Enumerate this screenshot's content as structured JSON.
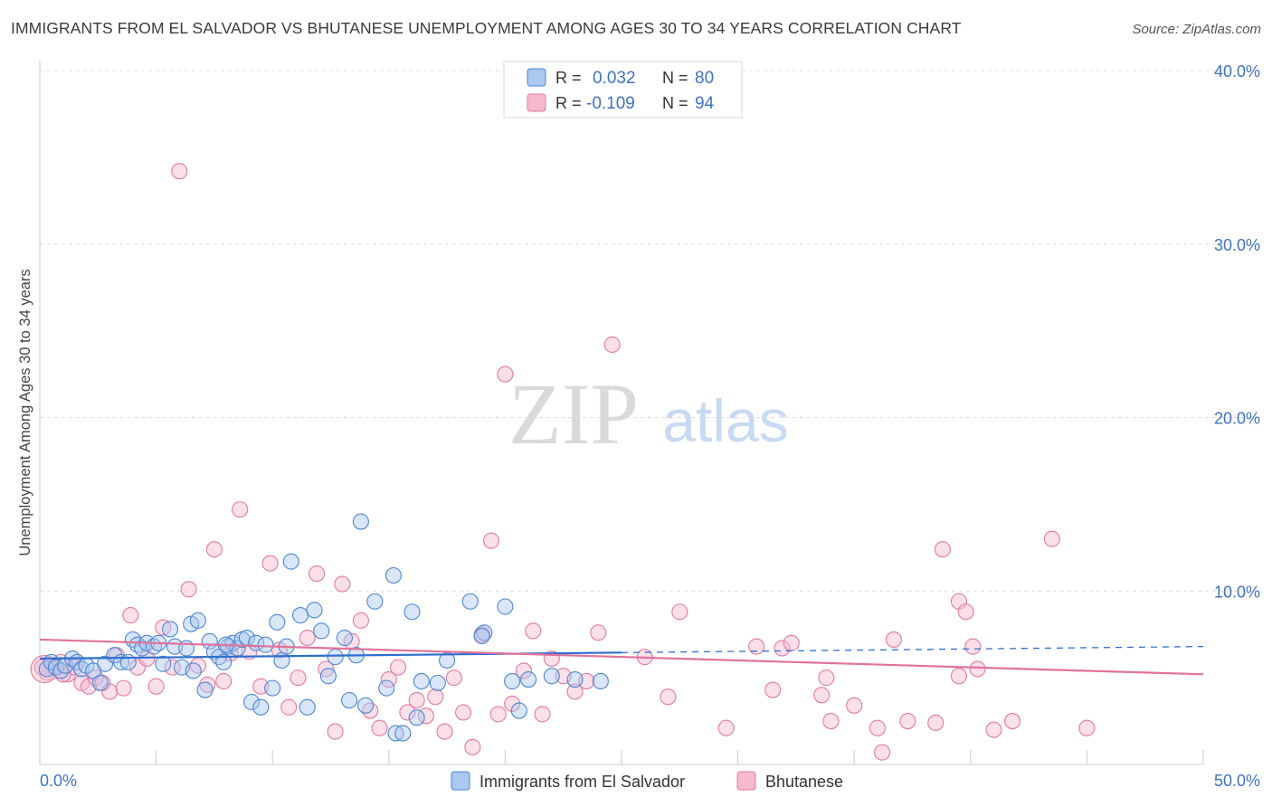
{
  "title": "IMMIGRANTS FROM EL SALVADOR VS BHUTANESE UNEMPLOYMENT AMONG AGES 30 TO 34 YEARS CORRELATION CHART",
  "source": "Source: ZipAtlas.com",
  "watermark": {
    "zip": "ZIP",
    "atlas": "atlas"
  },
  "chart_data": {
    "type": "scatter",
    "title": "IMMIGRANTS FROM EL SALVADOR VS BHUTANESE UNEMPLOYMENT AMONG AGES 30 TO 34 YEARS CORRELATION CHART",
    "xlabel": "",
    "ylabel": "Unemployment Among Ages 30 to 34 years",
    "xlim": [
      0,
      50
    ],
    "ylim": [
      0,
      40
    ],
    "x_tick_labels": [
      "0.0%",
      "50.0%"
    ],
    "y_ticks": [
      10,
      20,
      30,
      40
    ],
    "y_tick_labels": [
      "10.0%",
      "20.0%",
      "30.0%",
      "40.0%"
    ],
    "grid": true,
    "legend_position": "top-center",
    "colors": {
      "series1_fill": "#aac8f0",
      "series1_stroke": "#4d86d4",
      "series1_line": "#2e6fd0",
      "series2_fill": "#f6b9ce",
      "series2_stroke": "#e27aa0",
      "series2_line": "#e0729b",
      "tick_label": "#3d72c4",
      "grid": "#dddddd",
      "axis": "#cccccc"
    },
    "legend": [
      {
        "name": "Immigrants from El Salvador",
        "r_label": "R =",
        "r": "0.032",
        "n_label": "N =",
        "n": "80"
      },
      {
        "name": "Bhutanese",
        "r_label": "R =",
        "r": "-0.109",
        "n_label": "N =",
        "n": "94"
      }
    ],
    "series": [
      {
        "name": "Immigrants from El Salvador",
        "trend": {
          "x": [
            0,
            25,
            50
          ],
          "y": [
            6.1,
            6.45,
            6.8
          ],
          "solid_until": 25
        },
        "points": [
          [
            0.3,
            5.5
          ],
          [
            0.5,
            5.9
          ],
          [
            0.7,
            5.6
          ],
          [
            0.9,
            5.4
          ],
          [
            1.1,
            5.7
          ],
          [
            1.4,
            6.1
          ],
          [
            1.6,
            5.9
          ],
          [
            1.8,
            5.5
          ],
          [
            2.0,
            5.7
          ],
          [
            2.3,
            5.4
          ],
          [
            2.6,
            4.7
          ],
          [
            2.8,
            5.8
          ],
          [
            3.2,
            6.3
          ],
          [
            3.5,
            5.9
          ],
          [
            3.8,
            5.9
          ],
          [
            4.0,
            7.2
          ],
          [
            4.2,
            6.9
          ],
          [
            4.4,
            6.7
          ],
          [
            4.6,
            7.0
          ],
          [
            4.9,
            6.8
          ],
          [
            5.1,
            7.0
          ],
          [
            5.3,
            5.8
          ],
          [
            5.6,
            7.8
          ],
          [
            5.8,
            6.8
          ],
          [
            6.1,
            5.6
          ],
          [
            6.3,
            6.7
          ],
          [
            6.5,
            8.1
          ],
          [
            6.6,
            5.4
          ],
          [
            6.8,
            8.3
          ],
          [
            7.1,
            4.3
          ],
          [
            7.3,
            7.1
          ],
          [
            7.5,
            6.5
          ],
          [
            7.7,
            6.2
          ],
          [
            7.9,
            5.9
          ],
          [
            8.1,
            6.8
          ],
          [
            8.3,
            7.0
          ],
          [
            8.5,
            6.7
          ],
          [
            8.7,
            7.2
          ],
          [
            8.9,
            7.3
          ],
          [
            9.1,
            3.6
          ],
          [
            9.3,
            7.0
          ],
          [
            9.5,
            3.3
          ],
          [
            9.7,
            6.9
          ],
          [
            10.0,
            4.4
          ],
          [
            10.2,
            8.2
          ],
          [
            10.4,
            6.0
          ],
          [
            10.6,
            6.8
          ],
          [
            10.8,
            11.7
          ],
          [
            11.2,
            8.6
          ],
          [
            11.5,
            3.3
          ],
          [
            11.8,
            8.9
          ],
          [
            12.1,
            7.7
          ],
          [
            12.4,
            5.1
          ],
          [
            12.7,
            6.2
          ],
          [
            13.1,
            7.3
          ],
          [
            13.3,
            3.7
          ],
          [
            13.6,
            6.3
          ],
          [
            13.8,
            14.0
          ],
          [
            14.0,
            3.4
          ],
          [
            14.4,
            9.4
          ],
          [
            14.9,
            4.4
          ],
          [
            15.2,
            10.9
          ],
          [
            15.3,
            1.8
          ],
          [
            15.6,
            1.8
          ],
          [
            16.0,
            8.8
          ],
          [
            16.2,
            2.7
          ],
          [
            16.4,
            4.8
          ],
          [
            17.1,
            4.7
          ],
          [
            17.5,
            6.0
          ],
          [
            18.5,
            9.4
          ],
          [
            19.1,
            7.6
          ],
          [
            19.0,
            7.4
          ],
          [
            20.0,
            9.1
          ],
          [
            20.3,
            4.8
          ],
          [
            20.6,
            3.1
          ],
          [
            21.0,
            4.9
          ],
          [
            22.0,
            5.1
          ],
          [
            23.0,
            4.9
          ],
          [
            24.1,
            4.8
          ],
          [
            8.0,
            6.9
          ]
        ]
      },
      {
        "name": "Bhutanese",
        "trend": {
          "x": [
            0,
            50
          ],
          "y": [
            7.2,
            5.2
          ]
        },
        "points": [
          [
            0.3,
            5.3
          ],
          [
            0.6,
            5.6
          ],
          [
            0.9,
            5.9
          ],
          [
            1.2,
            5.2
          ],
          [
            1.5,
            5.6
          ],
          [
            1.8,
            4.7
          ],
          [
            2.1,
            4.5
          ],
          [
            2.4,
            5.0
          ],
          [
            2.7,
            4.7
          ],
          [
            3.0,
            4.2
          ],
          [
            3.3,
            6.3
          ],
          [
            3.6,
            4.4
          ],
          [
            3.9,
            8.6
          ],
          [
            4.2,
            5.6
          ],
          [
            4.6,
            6.1
          ],
          [
            5.0,
            4.5
          ],
          [
            5.3,
            7.9
          ],
          [
            5.7,
            5.6
          ],
          [
            6.0,
            34.2
          ],
          [
            6.4,
            10.1
          ],
          [
            6.8,
            5.7
          ],
          [
            7.2,
            4.6
          ],
          [
            7.5,
            12.4
          ],
          [
            7.9,
            4.8
          ],
          [
            8.2,
            6.4
          ],
          [
            8.6,
            14.7
          ],
          [
            9.0,
            6.5
          ],
          [
            9.5,
            4.5
          ],
          [
            9.9,
            11.6
          ],
          [
            10.3,
            6.6
          ],
          [
            10.7,
            3.3
          ],
          [
            11.1,
            5.0
          ],
          [
            11.5,
            7.3
          ],
          [
            11.9,
            11.0
          ],
          [
            12.3,
            5.5
          ],
          [
            12.7,
            1.9
          ],
          [
            13.0,
            10.4
          ],
          [
            13.4,
            7.1
          ],
          [
            13.8,
            8.3
          ],
          [
            14.2,
            3.1
          ],
          [
            14.6,
            2.1
          ],
          [
            15.0,
            4.9
          ],
          [
            15.4,
            5.6
          ],
          [
            15.8,
            3.0
          ],
          [
            16.2,
            3.7
          ],
          [
            16.6,
            2.8
          ],
          [
            17.0,
            3.9
          ],
          [
            17.4,
            1.9
          ],
          [
            17.8,
            5.0
          ],
          [
            18.2,
            3.0
          ],
          [
            18.6,
            1.0
          ],
          [
            19.0,
            7.5
          ],
          [
            19.4,
            12.9
          ],
          [
            19.7,
            2.9
          ],
          [
            20.0,
            22.5
          ],
          [
            20.3,
            3.5
          ],
          [
            20.8,
            5.4
          ],
          [
            21.2,
            7.7
          ],
          [
            21.6,
            2.9
          ],
          [
            22.0,
            6.1
          ],
          [
            22.5,
            5.1
          ],
          [
            23.0,
            4.2
          ],
          [
            23.5,
            4.8
          ],
          [
            24.0,
            7.6
          ],
          [
            24.6,
            24.2
          ],
          [
            26.0,
            6.2
          ],
          [
            27.0,
            3.9
          ],
          [
            27.5,
            8.8
          ],
          [
            29.5,
            2.1
          ],
          [
            30.8,
            6.8
          ],
          [
            31.5,
            4.3
          ],
          [
            31.9,
            6.7
          ],
          [
            32.3,
            7.0
          ],
          [
            33.6,
            4.0
          ],
          [
            33.8,
            5.0
          ],
          [
            34.0,
            2.5
          ],
          [
            35.0,
            3.4
          ],
          [
            36.0,
            2.1
          ],
          [
            36.7,
            7.2
          ],
          [
            36.2,
            0.7
          ],
          [
            37.3,
            2.5
          ],
          [
            38.5,
            2.4
          ],
          [
            38.8,
            12.4
          ],
          [
            39.5,
            5.1
          ],
          [
            40.3,
            5.5
          ],
          [
            39.5,
            9.4
          ],
          [
            39.8,
            8.8
          ],
          [
            40.1,
            6.8
          ],
          [
            41.0,
            2.0
          ],
          [
            41.8,
            2.5
          ],
          [
            43.5,
            13.0
          ],
          [
            45.0,
            2.1
          ],
          [
            0.1,
            5.6
          ],
          [
            1.0,
            5.2
          ]
        ]
      }
    ]
  }
}
